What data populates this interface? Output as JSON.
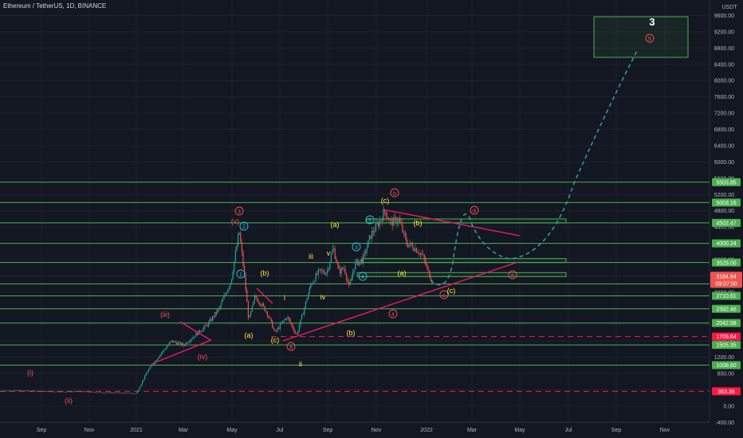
{
  "header": {
    "title": "Ethereum / TetherUS, 1D, BINANCE"
  },
  "chart_data": {
    "type": "candlestick",
    "symbol": "Ethereum / TetherUS",
    "interval": "1D",
    "exchange": "BINANCE",
    "currency_label": "USDT",
    "y_axis_ticks": [
      -400,
      0,
      400,
      800,
      1200,
      1600,
      2000,
      2400,
      2800,
      3200,
      3600,
      4000,
      4400,
      4800,
      5200,
      5600,
      6000,
      6400,
      6800,
      7200,
      7600,
      8000,
      8400,
      8800,
      9200,
      9600
    ],
    "y_axis_tick_labels": [
      "-400.00",
      "0.00",
      "400.00",
      "800.00",
      "1200.00",
      "1600.00",
      "2000.00",
      "2400.00",
      "2800.00",
      "3200.00",
      "3600.00",
      "4000.00",
      "4400.00",
      "4800.00",
      "5200.00",
      "5600.00",
      "6000.00",
      "6400.00",
      "6800.00",
      "7200.00",
      "7600.00",
      "8000.00",
      "8400.00",
      "8800.00",
      "9200.00",
      "9600.00"
    ],
    "x_axis_labels": [
      "Sep",
      "Nov",
      "2021",
      "Mar",
      "May",
      "Jul",
      "Sep",
      "Nov",
      "2022",
      "Mar",
      "May",
      "Jul",
      "Sep",
      "Nov"
    ],
    "price_tag": {
      "value": "3184.84",
      "countdown": "09:07:50",
      "color": "#ef5350"
    },
    "horizontal_levels": [
      {
        "label": "5503.85",
        "value": 5503.85,
        "color": "#4caf50",
        "style": "solid"
      },
      {
        "label": "5003.16",
        "value": 5003.16,
        "color": "#4caf50",
        "style": "solid"
      },
      {
        "label": "4502.47",
        "value": 4502.47,
        "color": "#4caf50",
        "style": "solid"
      },
      {
        "label": "4000.24",
        "value": 4000.24,
        "color": "#4caf50",
        "style": "solid"
      },
      {
        "label": "3529.00",
        "value": 3529.0,
        "color": "#4caf50",
        "style": "solid"
      },
      {
        "label": "3003.48",
        "value": 3003.48,
        "color": "#4caf50",
        "style": "solid"
      },
      {
        "label": "2710.61",
        "value": 2710.61,
        "color": "#4caf50",
        "style": "solid"
      },
      {
        "label": "2392.46",
        "value": 2392.46,
        "color": "#4caf50",
        "style": "solid"
      },
      {
        "label": "2042.58",
        "value": 2042.58,
        "color": "#4caf50",
        "style": "solid"
      },
      {
        "label": "1709.64",
        "value": 1709.64,
        "color": "#ff1744",
        "style": "dashed"
      },
      {
        "label": "1505.35",
        "value": 1505.35,
        "color": "#4caf50",
        "style": "solid"
      },
      {
        "label": "1008.60",
        "value": 1008.6,
        "color": "#4caf50",
        "style": "solid"
      },
      {
        "label": "363.36",
        "value": 363.36,
        "color": "#ff1744",
        "style": "dashed"
      }
    ],
    "wave_labels": [
      {
        "text": "(i)",
        "color": "#ef5350"
      },
      {
        "text": "(ii)",
        "color": "#ef5350"
      },
      {
        "text": "(iii)",
        "color": "#ef5350"
      },
      {
        "text": "(iv)",
        "color": "#ef5350"
      },
      {
        "text": "(v)",
        "color": "#ef5350"
      },
      {
        "text": "3",
        "color": "#ef5350"
      },
      {
        "text": "4",
        "color": "#ef5350"
      },
      {
        "text": "5",
        "color": "#ef5350"
      },
      {
        "text": "a",
        "color": "#ef5350"
      },
      {
        "text": "b",
        "color": "#ef5350"
      },
      {
        "text": "c",
        "color": "#ef5350"
      },
      {
        "text": "d",
        "color": "#ef5350"
      },
      {
        "text": "e",
        "color": "#ef5350"
      },
      {
        "text": "(a)",
        "color": "#ffeb3b"
      },
      {
        "text": "(b)",
        "color": "#ffeb3b"
      },
      {
        "text": "(c)",
        "color": "#ffeb3b"
      },
      {
        "text": "i",
        "color": "#ffeb3b"
      },
      {
        "text": "ii",
        "color": "#ffeb3b"
      },
      {
        "text": "iii",
        "color": "#ffeb3b"
      },
      {
        "text": "iv",
        "color": "#ffeb3b"
      },
      {
        "text": "v",
        "color": "#ffeb3b"
      },
      {
        "text": "1",
        "color": "#26c6da"
      },
      {
        "text": "2",
        "color": "#26c6da"
      },
      {
        "text": "3",
        "color": "#26c6da"
      },
      {
        "text": "4",
        "color": "#26c6da"
      },
      {
        "text": "5",
        "color": "#26c6da"
      },
      {
        "text": "3",
        "color": "#ffffff"
      }
    ],
    "colors": {
      "background": "#131722",
      "up_candle": "#26a69a",
      "down_candle": "#ef5350",
      "level_line": "#4caf50",
      "trendline": "#e91e63",
      "projection": "#26a69a",
      "label_bg_green": "#4caf50"
    }
  }
}
